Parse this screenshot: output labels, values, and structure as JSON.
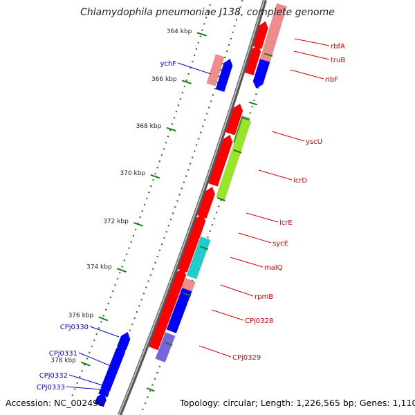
{
  "title": "Chlamydophila pneumoniae J138, complete genome",
  "accession": "Accession: NC_002491",
  "topology": "Topology: circular; Length: 1,226,565 bp; Genes: 1,110",
  "colors": {
    "backbone": "#777777",
    "tick": "#1a7a1a",
    "label_forward": "#d40000",
    "label_reverse": "#0000cc",
    "gene_red": "#ff0000",
    "gene_pink": "#f08c8c",
    "gene_blue": "#0000ff",
    "gene_green": "#99e629",
    "gene_darkgreen": "#339933",
    "gene_cyan": "#20cccc",
    "gene_purple": "#7766dd"
  },
  "ticks": [
    {
      "label": "364 kbp"
    },
    {
      "label": "366 kbp"
    },
    {
      "label": "368 kbp"
    },
    {
      "label": "370 kbp"
    },
    {
      "label": "372 kbp"
    },
    {
      "label": "374 kbp"
    },
    {
      "label": "376 kbp"
    },
    {
      "label": "378 kbp"
    }
  ],
  "gene_labels_right": [
    "rbfA",
    "truB",
    "ribF",
    "yscU",
    "lcrD",
    "lcrE",
    "sycE",
    "malQ",
    "rpmB",
    "CPj0328",
    "CPj0329"
  ],
  "gene_labels_left": [
    "ychF",
    "CPj0330",
    "CPj0331",
    "CPj0332",
    "CPj0333"
  ]
}
